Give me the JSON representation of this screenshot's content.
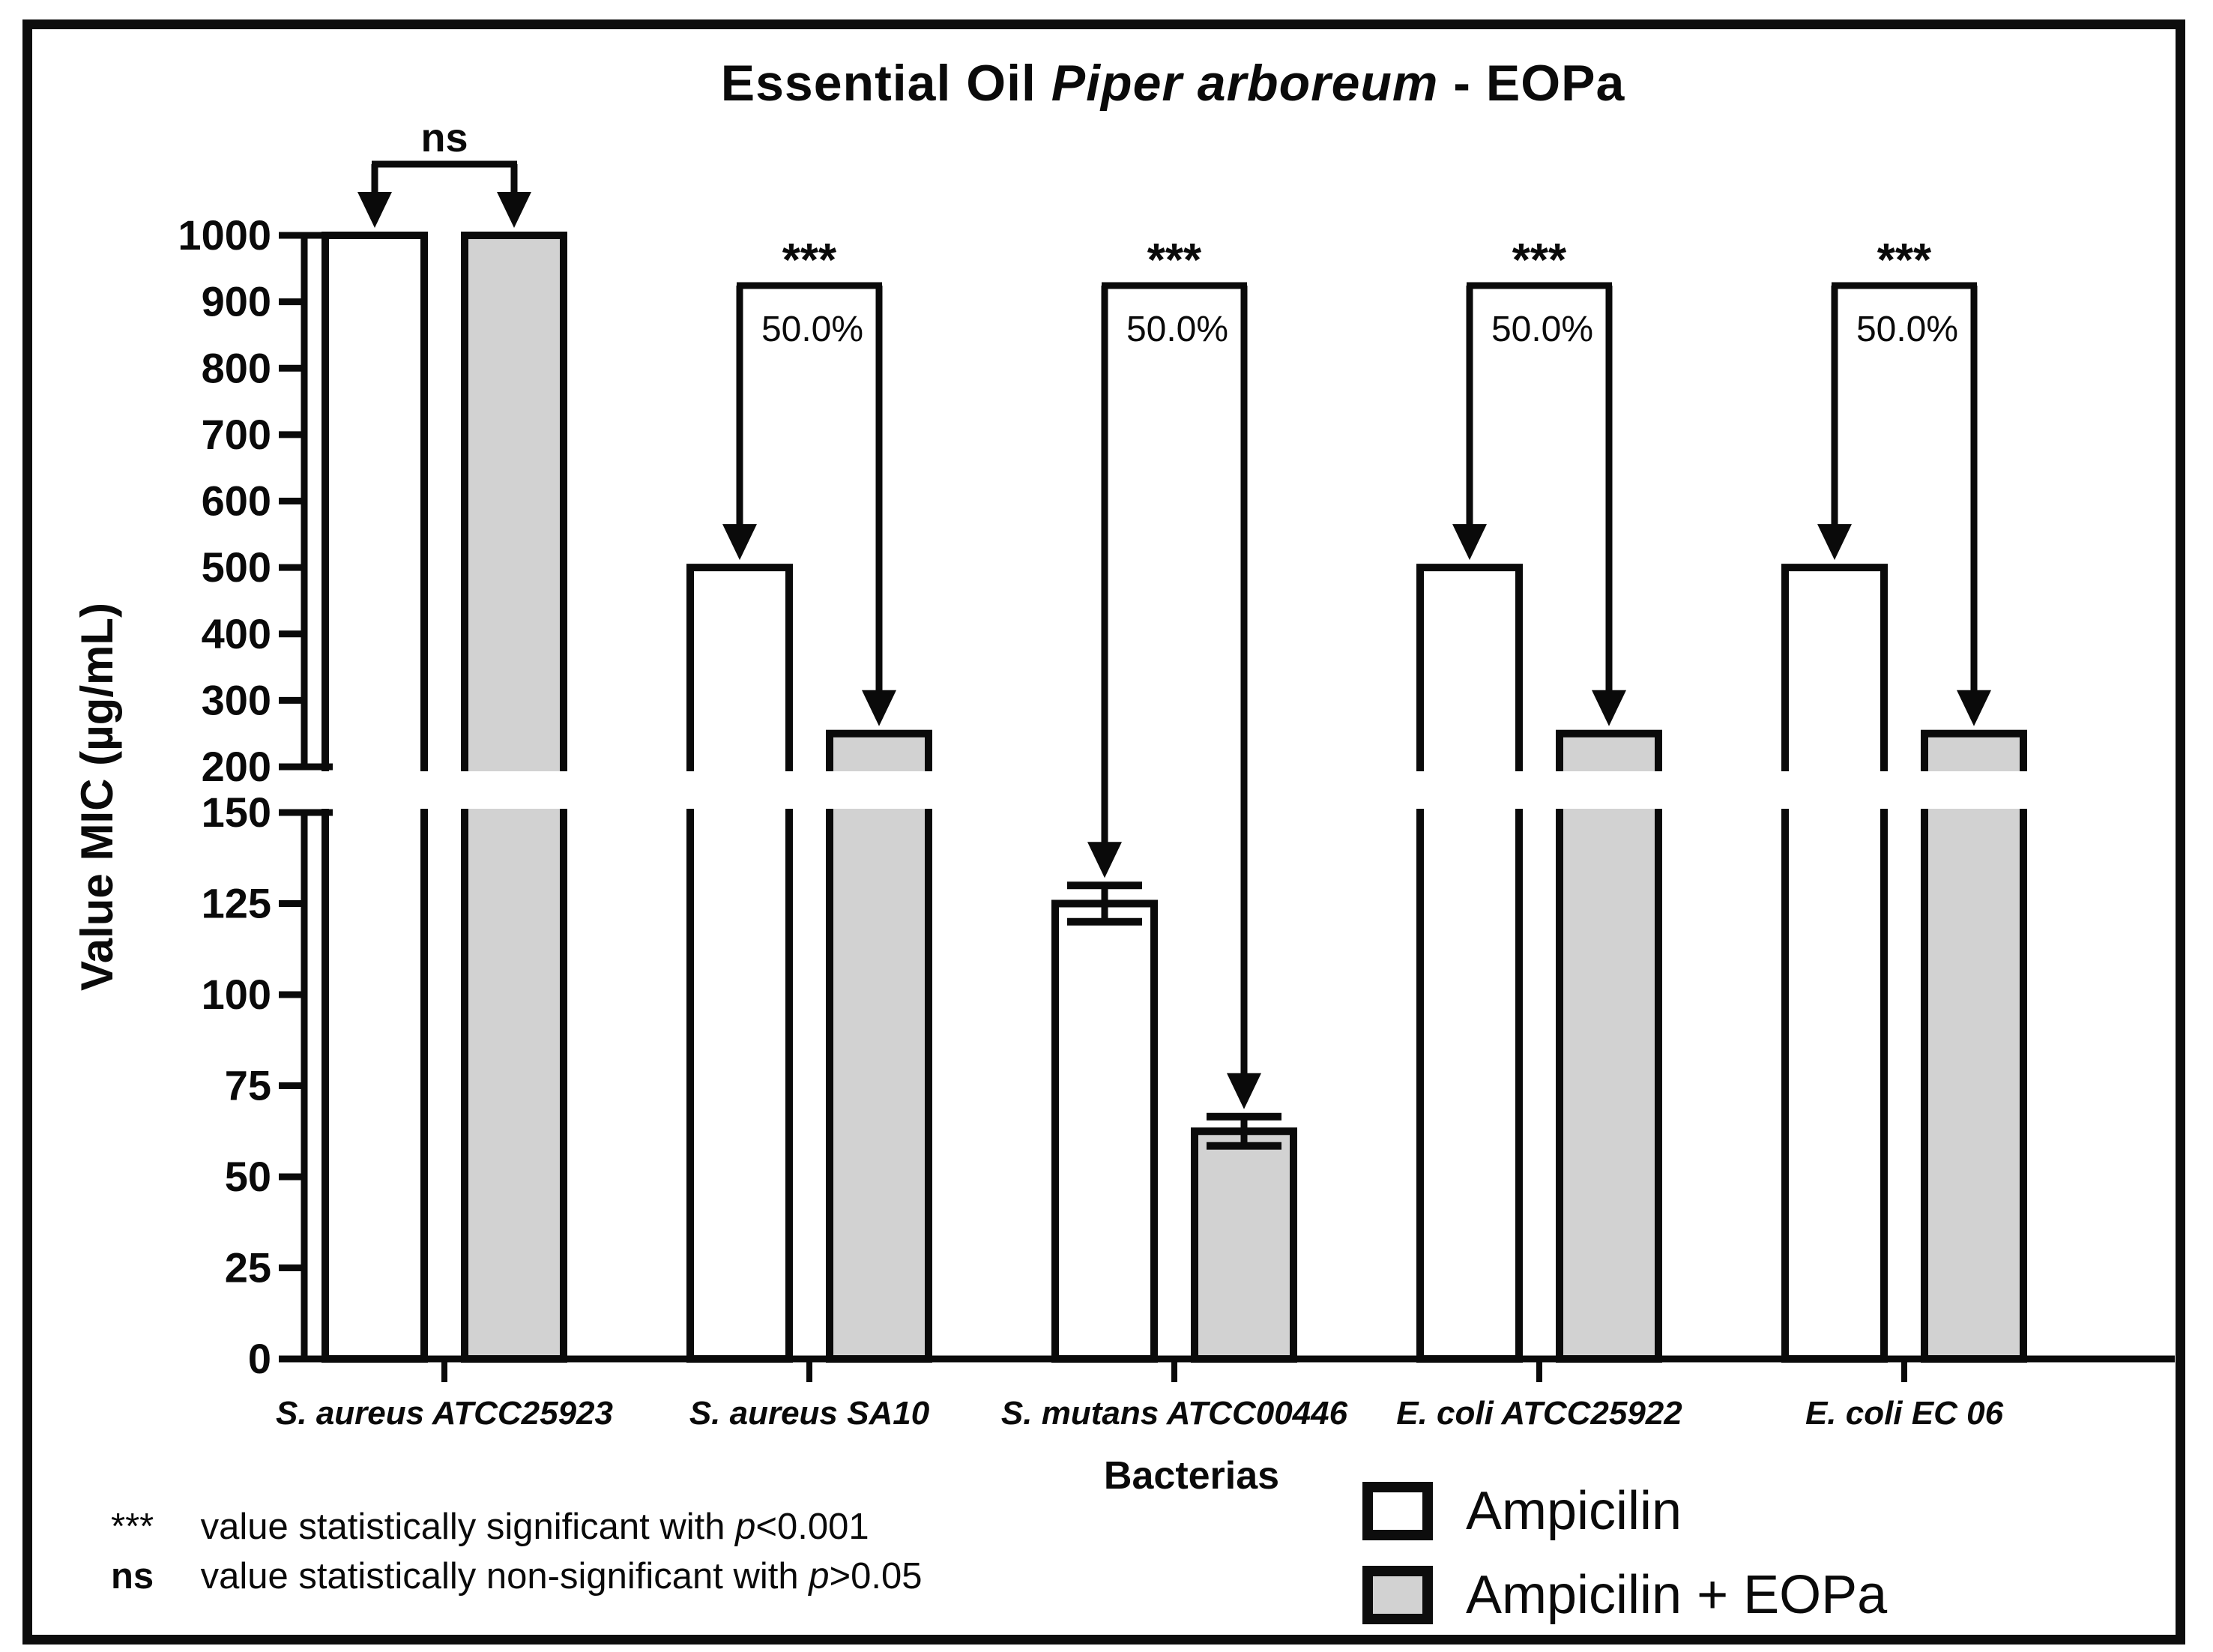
{
  "title_parts": {
    "prefix": "Essential Oil ",
    "italic": "Piper arboreum",
    "suffix": " - EOPa"
  },
  "chart_data": {
    "type": "bar",
    "title": "Essential Oil Piper arboreum - EOPa",
    "xlabel": "Bacterias",
    "ylabel": "Value MIC (µg/mL)",
    "categories": [
      "S. aureus ATCC25923",
      "S. aureus SA10",
      "S. mutans ATCC00446",
      "E. coli ATCC25922",
      "E. coli EC 06"
    ],
    "series": [
      {
        "name": "Ampicilin",
        "fill": "#ffffff",
        "values": [
          1000,
          500,
          125,
          500,
          500
        ],
        "errors": [
          0,
          0,
          5,
          0,
          0
        ]
      },
      {
        "name": "Ampicilin + EOPa",
        "fill": "#d2d2d2",
        "values": [
          1000,
          250,
          62.5,
          250,
          250
        ],
        "errors": [
          0,
          0,
          4,
          0,
          0
        ]
      }
    ],
    "broken_axis": {
      "lower_range": [
        0,
        150
      ],
      "lower_ticks": [
        0,
        25,
        50,
        75,
        100,
        125,
        150
      ],
      "upper_range": [
        200,
        1000
      ],
      "upper_ticks": [
        200,
        300,
        400,
        500,
        600,
        700,
        800,
        900,
        1000
      ]
    },
    "annotations": [
      {
        "category_index": 0,
        "label": "ns",
        "percent": null
      },
      {
        "category_index": 1,
        "label": "***",
        "percent": "50.0%"
      },
      {
        "category_index": 2,
        "label": "***",
        "percent": "50.0%"
      },
      {
        "category_index": 3,
        "label": "***",
        "percent": "50.0%"
      },
      {
        "category_index": 4,
        "label": "***",
        "percent": "50.0%"
      }
    ],
    "grid": false,
    "legend_position": "bottom-right",
    "outline_color": "#0a0a0a"
  },
  "footnotes": [
    {
      "marker": "***",
      "text": " value statistically significant with ",
      "p": "p",
      "tail": "<0.001"
    },
    {
      "marker": "ns",
      "text": " value statistically non-significant with ",
      "p": "p",
      "tail": ">0.05"
    }
  ]
}
